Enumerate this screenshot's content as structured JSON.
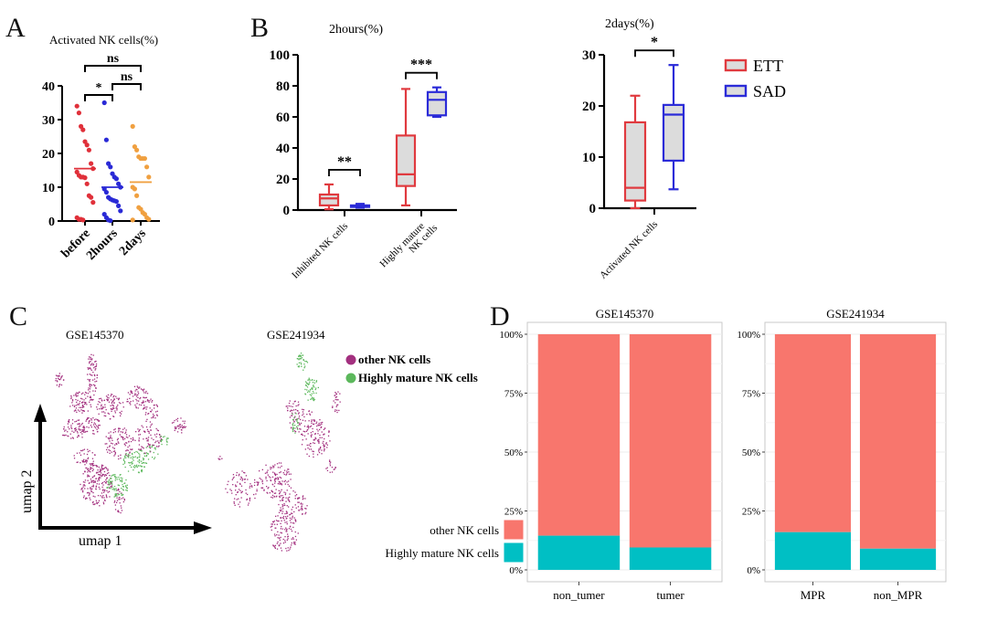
{
  "panels": {
    "A": {
      "letter": "A"
    },
    "B": {
      "letter": "B"
    },
    "C": {
      "letter": "C"
    },
    "D": {
      "letter": "D"
    }
  },
  "colors": {
    "before": "#e0303a",
    "2hours": "#2a2ad6",
    "2days": "#f0a040",
    "ETT": "#e03a3f",
    "SAD": "#2b2bd8",
    "box_fill": "#dcdcdc",
    "other_nk": "#a3307f",
    "highly_mature_nk": "#5cb85c",
    "bar_other": "#f8766d",
    "bar_mature": "#00bfc4"
  },
  "chart_data": [
    {
      "id": "A",
      "type": "scatter",
      "title": "Activated NK cells(%)",
      "categories": [
        "before",
        "2hours",
        "2days"
      ],
      "ylim": [
        0,
        40
      ],
      "yticks": [
        0,
        10,
        20,
        30,
        40
      ],
      "series": [
        {
          "name": "before",
          "median": 15.5,
          "values": [
            34,
            32,
            28,
            27,
            23.5,
            22.5,
            21,
            17,
            15.5,
            14.5,
            13.5,
            13,
            13,
            12.8,
            11,
            7.5,
            7,
            5.5,
            1,
            0.5,
            0.5,
            0.3
          ]
        },
        {
          "name": "2hours",
          "median": 10,
          "values": [
            35,
            24,
            17,
            16,
            14,
            13,
            12.5,
            11,
            10,
            9.5,
            8.5,
            7,
            6.5,
            6.2,
            6,
            5.8,
            4.5,
            3,
            2,
            1,
            0.3,
            0.1
          ]
        },
        {
          "name": "2days",
          "median": 11.5,
          "values": [
            28,
            22,
            21,
            19,
            18.5,
            18.5,
            18.5,
            16,
            13,
            10,
            9.5,
            7.5,
            4,
            3.5,
            2.5,
            2,
            1,
            0.5,
            0.3
          ]
        }
      ],
      "brackets": [
        {
          "from": "before",
          "to": "2days",
          "label": "ns"
        },
        {
          "from": "2hours",
          "to": "2days",
          "label": "ns"
        },
        {
          "from": "before",
          "to": "2hours",
          "label": "*"
        }
      ]
    },
    {
      "id": "B1",
      "type": "box",
      "title": "2hours(%)",
      "categories": [
        "Inhibited NK cells",
        "Highly mature NK cells"
      ],
      "category_lines": [
        [
          "Inhibited NK cells"
        ],
        [
          "Highly mature",
          "NK cells"
        ]
      ],
      "ylim": [
        0,
        100
      ],
      "yticks": [
        0,
        20,
        40,
        60,
        80,
        100
      ],
      "series": [
        {
          "name": "ETT",
          "boxes": [
            {
              "min": 0.5,
              "q1": 3,
              "median": 7.5,
              "q3": 10,
              "max": 16.5
            },
            {
              "min": 3,
              "q1": 15.5,
              "median": 23,
              "q3": 48,
              "max": 78
            }
          ]
        },
        {
          "name": "SAD",
          "boxes": [
            {
              "min": 1.5,
              "q1": 2,
              "median": 2.5,
              "q3": 3,
              "max": 4
            },
            {
              "min": 60,
              "q1": 61,
              "median": 71,
              "q3": 76,
              "max": 79
            }
          ]
        }
      ],
      "brackets": [
        {
          "category": "Inhibited NK cells",
          "label": "**"
        },
        {
          "category": "Highly mature NK cells",
          "label": "***"
        }
      ]
    },
    {
      "id": "B2",
      "type": "box",
      "title": "2days(%)",
      "categories": [
        "Activated NK cells"
      ],
      "category_lines": [
        [
          "Activated NK cells"
        ]
      ],
      "ylim": [
        0,
        30
      ],
      "yticks": [
        0,
        10,
        20,
        30
      ],
      "series": [
        {
          "name": "ETT",
          "boxes": [
            {
              "min": 0,
              "q1": 1.5,
              "median": 4,
              "q3": 16.8,
              "max": 22
            }
          ]
        },
        {
          "name": "SAD",
          "boxes": [
            {
              "min": 3.7,
              "q1": 9.3,
              "median": 18.3,
              "q3": 20.2,
              "max": 28
            }
          ]
        }
      ],
      "brackets": [
        {
          "category": "Activated NK cells",
          "label": "*"
        }
      ],
      "legend": {
        "placement": "right",
        "entries": [
          "ETT",
          "SAD"
        ]
      }
    },
    {
      "id": "C",
      "type": "scatter",
      "subtype": "umap",
      "titles": [
        "GSE145370",
        "GSE241934"
      ],
      "xlabel": "umap 1",
      "ylabel": "umap 2",
      "legend": {
        "placement": "top-right",
        "entries": [
          "other NK cells",
          "Highly mature NK cells"
        ]
      }
    },
    {
      "id": "D",
      "type": "bar",
      "subtype": "stacked-percent",
      "yticks": [
        "0%",
        "25%",
        "50%",
        "75%",
        "100%"
      ],
      "ylim": [
        0,
        100
      ],
      "legend": {
        "placement": "left",
        "entries": [
          "other NK cells",
          "Highly mature NK cells"
        ]
      },
      "facets": [
        {
          "title": "GSE145370",
          "categories": [
            "non_tumer",
            "tumer"
          ],
          "series": [
            {
              "name": "Highly mature NK cells",
              "values": [
                14.5,
                9.5
              ]
            },
            {
              "name": "other NK cells",
              "values": [
                85.5,
                90.5
              ]
            }
          ]
        },
        {
          "title": "GSE241934",
          "categories": [
            "MPR",
            "non_MPR"
          ],
          "series": [
            {
              "name": "Highly mature NK cells",
              "values": [
                16,
                9
              ]
            },
            {
              "name": "other NK cells",
              "values": [
                84,
                91
              ]
            }
          ]
        }
      ]
    }
  ]
}
